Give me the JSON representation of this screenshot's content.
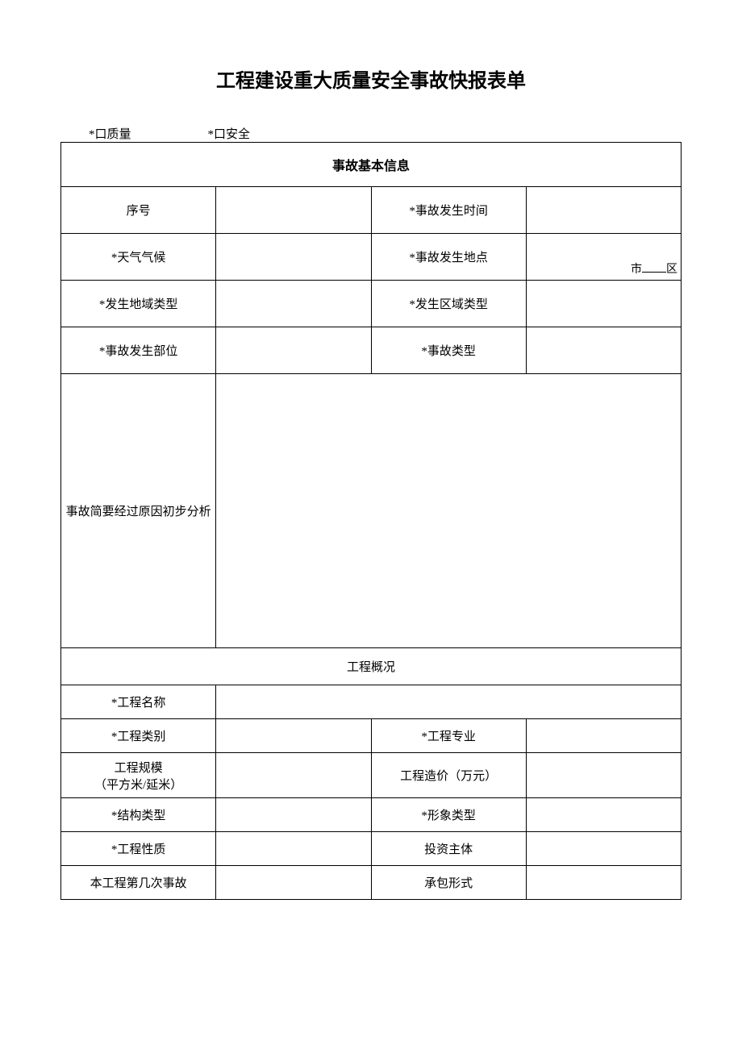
{
  "title": "工程建设重大质量安全事故快报表单",
  "checkboxes": {
    "quality": "*口质量",
    "safety": "*口安全"
  },
  "section1_header": "事故基本信息",
  "section1": {
    "row1": {
      "label1": "序号",
      "label2": "*事故发生时间"
    },
    "row2": {
      "label1": "*天气气候",
      "label2": "*事故发生地点",
      "loc_city": "市",
      "loc_district": "区"
    },
    "row3": {
      "label1": "*发生地域类型",
      "label2": "*发生区域类型"
    },
    "row4": {
      "label1": "*事故发生部位",
      "label2": "*事故类型"
    },
    "row5": {
      "label1": "事故简要经过原因初步分析"
    }
  },
  "section2_header": "工程概况",
  "section2": {
    "row1": {
      "label1": "*工程名称"
    },
    "row2": {
      "label1": "*工程类别",
      "label2": "*工程专业"
    },
    "row3": {
      "label1_line1": "工程规模",
      "label1_line2": "（平方米/延米）",
      "label2": "工程造价（万元）"
    },
    "row4": {
      "label1": "*结构类型",
      "label2": "*形象类型"
    },
    "row5": {
      "label1": "*工程性质",
      "label2": "投资主体"
    },
    "row6": {
      "label1": "本工程第几次事故",
      "label2": "承包形式"
    }
  }
}
